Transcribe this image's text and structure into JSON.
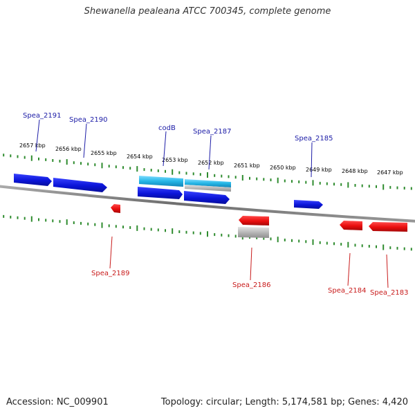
{
  "title": "Shewanella pealeana ATCC 700345, complete genome",
  "footer": {
    "accession": "Accession: NC_009901",
    "summary": "Topology: circular; Length: 5,174,581 bp; Genes: 4,420"
  },
  "colors": {
    "forward_gene": "#0a14d8",
    "reverse_gene": "#e80d0d",
    "cds_highlight": "#24b6e6",
    "pseudo_gray": "#b8b8b8",
    "backbone": "#808080",
    "ticks": "#2e8b2e",
    "label_forward": "#1a1aa6",
    "label_reverse": "#c81a1a"
  },
  "scale_labels": [
    "2657 kbp",
    "2656 kbp",
    "2655 kbp",
    "2654 kbp",
    "2653 kbp",
    "2652 kbp",
    "2651 kbp",
    "2650 kbp",
    "2649 kbp",
    "2648 kbp",
    "2647 kbp"
  ],
  "forward_genes": [
    "Spea_2191",
    "Spea_2190",
    "codB",
    "Spea_2187",
    "Spea_2185"
  ],
  "reverse_genes": [
    "Spea_2189",
    "Spea_2186",
    "Spea_2184",
    "Spea_2183"
  ]
}
